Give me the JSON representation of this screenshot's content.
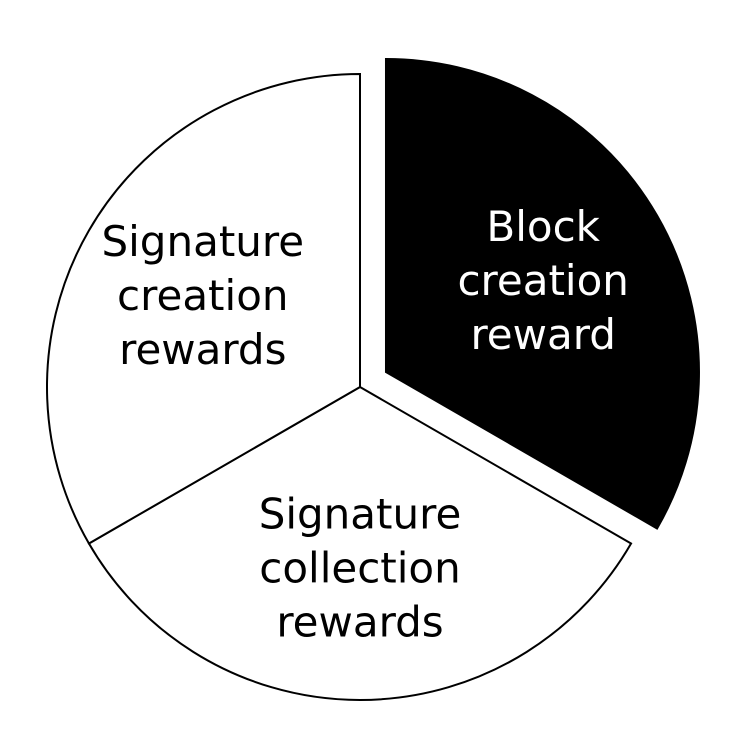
{
  "chart_data": {
    "type": "pie",
    "title": "",
    "slices": [
      {
        "label_lines": [
          "Block",
          "creation",
          "reward"
        ],
        "value": 1,
        "fill": "#000000",
        "text_color": "#ffffff",
        "exploded": true
      },
      {
        "label_lines": [
          "Signature",
          "collection",
          "rewards"
        ],
        "value": 1,
        "fill": "#ffffff",
        "text_color": "#000000",
        "exploded": false
      },
      {
        "label_lines": [
          "Signature",
          "creation",
          "rewards"
        ],
        "value": 1,
        "fill": "#ffffff",
        "text_color": "#000000",
        "exploded": false
      }
    ],
    "start_angle_deg": 0,
    "direction": "clockwise",
    "stroke_color": "#000000"
  }
}
